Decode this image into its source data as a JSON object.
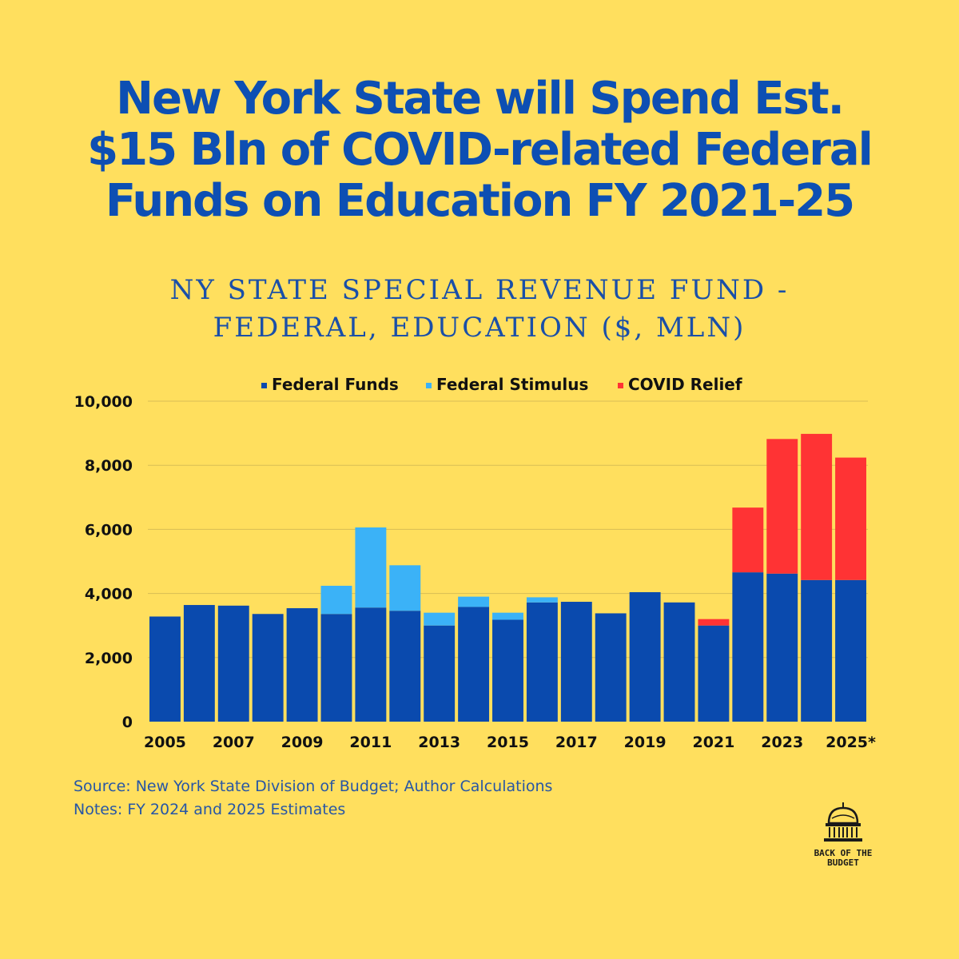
{
  "headline": {
    "line1": "New York State will Spend Est.",
    "line2": "$15 Bln of COVID-related Federal",
    "line3": "Funds on Education FY 2021-25"
  },
  "subtitle": {
    "line1": "NY STATE SPECIAL REVENUE FUND -",
    "line2": "FEDERAL, EDUCATION ($, MLN)"
  },
  "colors": {
    "background": "#FFDF5E",
    "federal_funds": "#0A4AAE",
    "federal_stimulus": "#3BB2F7",
    "covid_relief": "#FF3334"
  },
  "chart_data": {
    "type": "bar",
    "stacked": true,
    "categories": [
      "2005",
      "2006",
      "2007",
      "2008",
      "2009",
      "2010",
      "2011",
      "2012",
      "2013",
      "2014",
      "2015",
      "2016",
      "2017",
      "2018",
      "2019",
      "2020",
      "2021",
      "2022",
      "2023",
      "2024",
      "2025*"
    ],
    "x_tick_labels": [
      "2005",
      "",
      "2007",
      "",
      "2009",
      "",
      "2011",
      "",
      "2013",
      "",
      "2015",
      "",
      "2017",
      "",
      "2019",
      "",
      "2021",
      "",
      "2023",
      "",
      "2025*"
    ],
    "series": [
      {
        "name": "Federal Funds",
        "color": "#0A4AAE",
        "values": [
          3280,
          3640,
          3620,
          3360,
          3540,
          3360,
          3560,
          3460,
          3000,
          3580,
          3180,
          3720,
          3740,
          3380,
          4040,
          3720,
          3000,
          4660,
          4620,
          4420,
          4420
        ]
      },
      {
        "name": "Federal Stimulus",
        "color": "#3BB2F7",
        "values": [
          0,
          0,
          0,
          0,
          0,
          880,
          2500,
          1420,
          400,
          320,
          220,
          160,
          0,
          0,
          0,
          0,
          0,
          0,
          0,
          0,
          0
        ]
      },
      {
        "name": "COVID Relief",
        "color": "#FF3334",
        "values": [
          0,
          0,
          0,
          0,
          0,
          0,
          0,
          0,
          0,
          0,
          0,
          0,
          0,
          0,
          0,
          0,
          200,
          2020,
          4200,
          4560,
          3820
        ]
      }
    ],
    "ylim": [
      0,
      10000
    ],
    "y_ticks": [
      0,
      2000,
      4000,
      6000,
      8000,
      10000
    ],
    "y_tick_labels": [
      "0",
      "2,000",
      "4,000",
      "6,000",
      "8,000",
      "10,000"
    ],
    "grid": true,
    "legend_position": "top"
  },
  "notes": {
    "source": "Source: New York State Division of Budget; Author Calculations",
    "notes": "Notes: FY 2024 and 2025 Estimates"
  },
  "logo": {
    "line1": "BACK OF THE",
    "line2": "BUDGET",
    "icon": "capitol-dome-icon"
  }
}
